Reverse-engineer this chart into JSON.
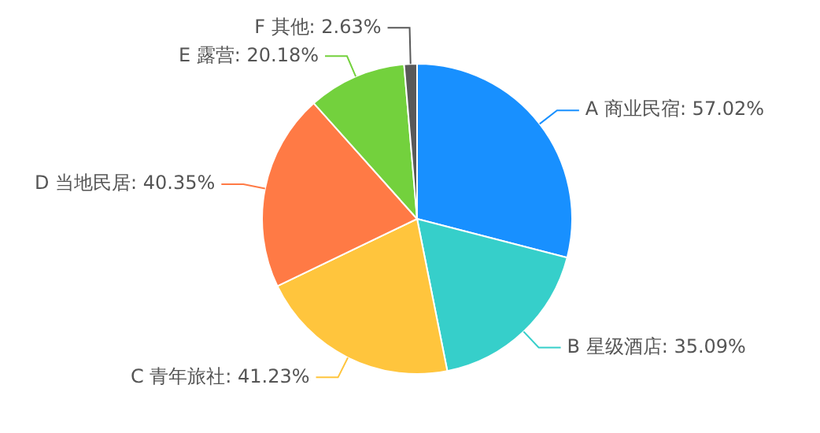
{
  "chart_data": {
    "type": "pie",
    "categories": [
      "A 商业民宿",
      "B 星级酒店",
      "C 青年旅社",
      "D 当地民居",
      "E 露营",
      "F 其他"
    ],
    "values": [
      57.02,
      35.09,
      41.23,
      40.35,
      20.18,
      2.63
    ],
    "value_labels": [
      "57.02%",
      "35.09%",
      "41.23%",
      "40.35%",
      "20.18%",
      "2.63%"
    ],
    "colors": [
      "#1890ff",
      "#36cfca",
      "#ffc53d",
      "#ff7a45",
      "#73d13d",
      "#595959"
    ],
    "legend": false
  }
}
